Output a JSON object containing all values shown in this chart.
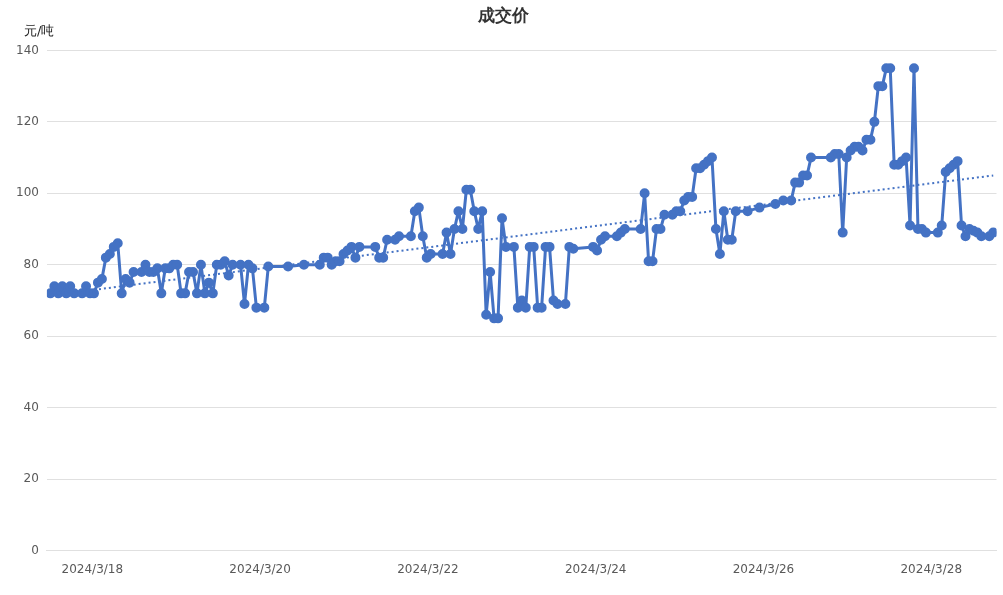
{
  "chart_data": {
    "type": "line",
    "title": "成交价",
    "ylabel": "元/吨",
    "xlim": [
      "2024-03-17T11:00",
      "2024-03-28T18:40"
    ],
    "xticks": [
      {
        "value": "2024-03-18",
        "label": "2024/3/18"
      },
      {
        "value": "2024-03-20",
        "label": "2024/3/20"
      },
      {
        "value": "2024-03-22",
        "label": "2024/3/22"
      },
      {
        "value": "2024-03-24",
        "label": "2024/3/24"
      },
      {
        "value": "2024-03-26",
        "label": "2024/3/26"
      },
      {
        "value": "2024-03-28",
        "label": "2024/3/28"
      }
    ],
    "ylim": [
      0,
      140
    ],
    "yticks": [
      0,
      20,
      40,
      60,
      80,
      100,
      120,
      140
    ],
    "grid": "y",
    "marker": "circle",
    "series": [
      {
        "color": "#4472c4",
        "x": [
          "2024-03-17T12:00",
          "2024-03-17T13:08",
          "2024-03-17T14:16",
          "2024-03-17T15:24",
          "2024-03-17T16:32",
          "2024-03-17T17:40",
          "2024-03-17T18:48",
          "2024-03-17T21:04",
          "2024-03-17T22:12",
          "2024-03-17T23:20",
          "2024-03-18T00:28",
          "2024-03-18T01:36",
          "2024-03-18T02:44",
          "2024-03-18T03:52",
          "2024-03-18T05:00",
          "2024-03-18T06:08",
          "2024-03-18T07:16",
          "2024-03-18T08:24",
          "2024-03-18T09:32",
          "2024-03-18T10:40",
          "2024-03-18T11:48",
          "2024-03-18T14:04",
          "2024-03-18T15:12",
          "2024-03-18T16:20",
          "2024-03-18T17:28",
          "2024-03-18T18:36",
          "2024-03-18T19:44",
          "2024-03-18T20:52",
          "2024-03-18T22:00",
          "2024-03-18T23:08",
          "2024-03-19T00:16",
          "2024-03-19T01:24",
          "2024-03-19T02:32",
          "2024-03-19T03:40",
          "2024-03-19T04:48",
          "2024-03-19T05:56",
          "2024-03-19T07:04",
          "2024-03-19T08:12",
          "2024-03-19T09:20",
          "2024-03-19T10:28",
          "2024-03-19T11:36",
          "2024-03-19T12:44",
          "2024-03-19T13:52",
          "2024-03-19T15:00",
          "2024-03-19T16:08",
          "2024-03-19T18:24",
          "2024-03-19T19:32",
          "2024-03-19T20:40",
          "2024-03-19T21:48",
          "2024-03-19T22:56",
          "2024-03-20T01:12",
          "2024-03-20T02:20",
          "2024-03-20T08:00",
          "2024-03-20T12:32",
          "2024-03-20T17:04",
          "2024-03-20T18:12",
          "2024-03-20T19:20",
          "2024-03-20T20:28",
          "2024-03-20T21:36",
          "2024-03-20T22:44",
          "2024-03-20T23:52",
          "2024-03-21T01:00",
          "2024-03-21T02:08",
          "2024-03-21T03:16",
          "2024-03-21T04:24",
          "2024-03-21T08:56",
          "2024-03-21T10:04",
          "2024-03-21T11:12",
          "2024-03-21T12:20",
          "2024-03-21T14:36",
          "2024-03-21T15:44",
          "2024-03-21T19:08",
          "2024-03-21T20:16",
          "2024-03-21T21:24",
          "2024-03-21T22:32",
          "2024-03-21T23:40",
          "2024-03-22T00:48",
          "2024-03-22T04:12",
          "2024-03-22T05:20",
          "2024-03-22T06:28",
          "2024-03-22T07:36",
          "2024-03-22T08:44",
          "2024-03-22T09:52",
          "2024-03-22T11:00",
          "2024-03-22T12:08",
          "2024-03-22T13:16",
          "2024-03-22T14:24",
          "2024-03-22T15:32",
          "2024-03-22T16:40",
          "2024-03-22T17:48",
          "2024-03-22T18:56",
          "2024-03-22T20:04",
          "2024-03-22T21:12",
          "2024-03-22T22:20",
          "2024-03-23T00:36",
          "2024-03-23T01:44",
          "2024-03-23T02:52",
          "2024-03-23T04:00",
          "2024-03-23T05:08",
          "2024-03-23T06:16",
          "2024-03-23T07:24",
          "2024-03-23T08:32",
          "2024-03-23T09:40",
          "2024-03-23T10:48",
          "2024-03-23T11:56",
          "2024-03-23T13:04",
          "2024-03-23T15:20",
          "2024-03-23T16:28",
          "2024-03-23T17:36",
          "2024-03-23T23:16",
          "2024-03-24T00:24",
          "2024-03-24T01:32",
          "2024-03-24T02:40",
          "2024-03-24T06:04",
          "2024-03-24T07:12",
          "2024-03-24T08:20",
          "2024-03-24T12:52",
          "2024-03-24T14:00",
          "2024-03-24T15:08",
          "2024-03-24T16:16",
          "2024-03-24T17:24",
          "2024-03-24T18:32",
          "2024-03-24T19:40",
          "2024-03-24T21:56",
          "2024-03-24T23:04",
          "2024-03-25T00:12",
          "2024-03-25T01:20",
          "2024-03-25T02:28",
          "2024-03-25T03:36",
          "2024-03-25T04:44",
          "2024-03-25T05:52",
          "2024-03-25T07:00",
          "2024-03-25T08:08",
          "2024-03-25T09:16",
          "2024-03-25T10:24",
          "2024-03-25T11:32",
          "2024-03-25T12:40",
          "2024-03-25T13:48",
          "2024-03-25T14:56",
          "2024-03-25T16:04",
          "2024-03-25T19:28",
          "2024-03-25T22:52",
          "2024-03-26T03:24",
          "2024-03-26T05:40",
          "2024-03-26T07:56",
          "2024-03-26T09:04",
          "2024-03-26T10:12",
          "2024-03-26T11:20",
          "2024-03-26T12:28",
          "2024-03-26T13:36",
          "2024-03-26T19:16",
          "2024-03-26T20:24",
          "2024-03-26T21:32",
          "2024-03-26T22:40",
          "2024-03-26T23:48",
          "2024-03-27T00:56",
          "2024-03-27T02:04",
          "2024-03-27T03:12",
          "2024-03-27T04:20",
          "2024-03-27T05:28",
          "2024-03-27T06:36",
          "2024-03-27T07:44",
          "2024-03-27T08:52",
          "2024-03-27T10:00",
          "2024-03-27T11:08",
          "2024-03-27T12:16",
          "2024-03-27T13:24",
          "2024-03-27T14:32",
          "2024-03-27T15:40",
          "2024-03-27T16:48",
          "2024-03-27T17:56",
          "2024-03-27T19:04",
          "2024-03-27T20:12",
          "2024-03-27T21:20",
          "2024-03-27T22:28",
          "2024-03-28T01:52",
          "2024-03-28T03:00",
          "2024-03-28T04:08",
          "2024-03-28T05:16",
          "2024-03-28T06:24",
          "2024-03-28T07:32",
          "2024-03-28T08:40",
          "2024-03-28T09:48",
          "2024-03-28T10:56",
          "2024-03-28T12:04",
          "2024-03-28T13:12",
          "2024-03-28T14:20",
          "2024-03-28T16:36",
          "2024-03-28T17:44"
        ],
        "values": [
          72,
          74,
          72,
          74,
          72,
          74,
          72,
          72,
          74,
          72,
          72,
          75,
          76,
          82,
          83,
          85,
          86,
          72,
          76,
          75,
          78,
          78,
          80,
          78,
          78,
          79,
          72,
          79,
          79,
          80,
          80,
          72,
          72,
          78,
          78,
          72,
          80,
          72,
          75,
          72,
          80,
          80,
          81,
          77,
          80,
          80,
          69,
          80,
          79,
          68,
          68,
          79.5,
          79.5,
          80,
          80,
          82,
          82,
          80,
          81,
          81,
          83,
          84,
          85,
          82,
          85,
          85,
          82,
          82,
          87,
          87,
          88,
          88,
          95,
          96,
          88,
          82,
          83,
          83,
          89,
          83,
          90,
          95,
          90,
          101,
          101,
          95,
          90,
          95,
          66,
          78,
          65,
          65,
          93,
          85,
          85,
          68,
          70,
          68,
          85,
          85,
          68,
          68,
          85,
          85,
          70,
          69,
          69,
          85,
          84.5,
          85,
          84,
          87,
          88,
          88,
          89,
          90,
          90,
          100,
          81,
          81,
          90,
          90,
          94,
          94,
          95,
          95,
          98,
          99,
          99,
          107,
          107,
          108,
          109,
          110,
          90,
          83,
          95,
          87,
          87,
          95,
          95,
          96,
          97,
          98,
          98,
          103,
          103,
          105,
          105,
          110,
          110,
          111,
          111,
          89,
          110,
          112,
          113,
          113,
          112,
          115,
          115,
          120,
          130,
          130,
          135,
          135,
          108,
          108,
          109,
          110,
          91,
          135,
          90,
          90,
          89,
          89,
          91,
          106,
          107,
          108,
          109,
          91,
          88,
          90,
          89.5,
          89,
          88,
          88,
          89
        ]
      },
      {
        "type": "line",
        "color": "#4472c4",
        "line_style": "dotted",
        "marker": "none",
        "x": [
          "2024-03-18T00:28",
          "2024-03-28T17:44"
        ],
        "values": [
          73,
          105
        ]
      }
    ]
  }
}
